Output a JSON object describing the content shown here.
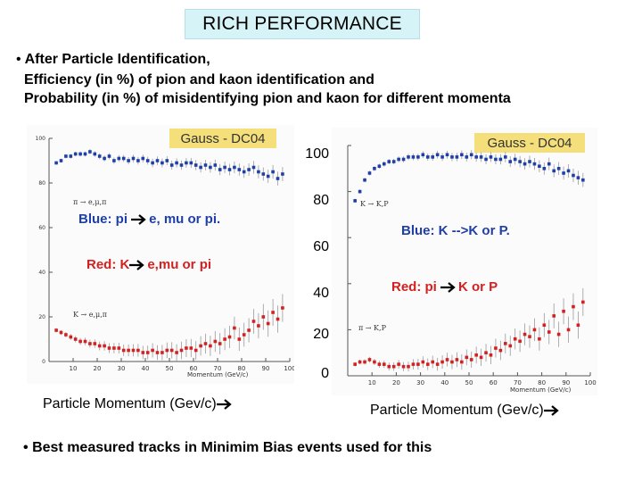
{
  "title": "RICH PERFORMANCE",
  "intro": {
    "bullet": "•",
    "line1": "After Particle Identification,",
    "line2": "Efficiency (in %) of pion and kaon identification and",
    "line3": "Probability (in %) of misidentifying pion and kaon for different momenta"
  },
  "left_panel": {
    "badge": "Gauss - DC04",
    "pi_label": "π → e,μ,π",
    "k_label": "K → e,μ,π",
    "axis_label": "Momentum (GeV/c)",
    "blue_note": "Blue: pi",
    "blue_note_tail": "e, mu or pi.",
    "red_note": "Red: K",
    "red_note_tail": "e,mu or pi",
    "xlabel": "Particle Momentum (Gev/c)"
  },
  "right_panel": {
    "badge": "Gauss - DC04",
    "k_label": "K → K,P",
    "pi_label": "π → K,P",
    "axis_label": "Momentum (GeV/c)",
    "blue_note": "Blue: K -->K or P.",
    "red_note": "Red: pi",
    "red_note_tail": "K or P",
    "xlabel": "Particle Momentum (Gev/c)"
  },
  "shared_yticks": [
    "100",
    "80",
    "60",
    "40",
    "20",
    "0"
  ],
  "footer": "Best measured tracks in Minimim Bias events used for this",
  "colors": {
    "blue": "#1f3fa8",
    "red": "#d42020",
    "badge": "#f4df7a",
    "title_bg": "#d6f3f7"
  },
  "chart_data": [
    {
      "type": "scatter",
      "title": "Gauss - DC04",
      "xlabel": "Momentum (GeV/c)",
      "xlim": [
        0,
        100
      ],
      "ylim": [
        0,
        100
      ],
      "xticks": [
        10,
        20,
        30,
        40,
        50,
        60,
        70,
        80,
        90,
        100
      ],
      "yticks": [
        0,
        20,
        40,
        60,
        80,
        100
      ],
      "series": [
        {
          "name": "π → e,μ,π",
          "color": "blue",
          "x": [
            3,
            5,
            7,
            9,
            11,
            13,
            15,
            17,
            19,
            21,
            23,
            25,
            27,
            29,
            31,
            33,
            35,
            37,
            39,
            41,
            43,
            45,
            47,
            49,
            51,
            53,
            55,
            57,
            59,
            61,
            63,
            65,
            67,
            69,
            71,
            73,
            75,
            77,
            79,
            81,
            83,
            85,
            87,
            89,
            91,
            93,
            95,
            97
          ],
          "y": [
            89,
            90,
            92,
            92,
            93,
            93,
            93,
            94,
            93,
            92,
            91,
            92,
            90,
            91,
            91,
            90,
            91,
            90,
            91,
            90,
            89,
            90,
            89,
            90,
            88,
            89,
            88,
            89,
            89,
            88,
            87,
            88,
            87,
            88,
            86,
            87,
            86,
            87,
            86,
            85,
            86,
            87,
            85,
            84,
            83,
            85,
            82,
            84
          ]
        },
        {
          "name": "K → e,μ,π",
          "color": "red",
          "x": [
            3,
            5,
            7,
            9,
            11,
            13,
            15,
            17,
            19,
            21,
            23,
            25,
            27,
            29,
            31,
            33,
            35,
            37,
            39,
            41,
            43,
            45,
            47,
            49,
            51,
            53,
            55,
            57,
            59,
            61,
            63,
            65,
            67,
            69,
            71,
            73,
            75,
            77,
            79,
            81,
            83,
            85,
            87,
            89,
            91,
            93,
            95,
            97
          ],
          "y": [
            14,
            13,
            12,
            11,
            10,
            9,
            9,
            8,
            8,
            7,
            7,
            6,
            6,
            6,
            5,
            5,
            5,
            5,
            4,
            4,
            5,
            4,
            4,
            5,
            5,
            4,
            5,
            6,
            6,
            5,
            7,
            8,
            7,
            9,
            8,
            10,
            11,
            15,
            10,
            12,
            14,
            18,
            16,
            20,
            17,
            22,
            19,
            24
          ]
        }
      ]
    },
    {
      "type": "scatter",
      "title": "Gauss - DC04",
      "xlabel": "Momentum (GeV/c)",
      "xlim": [
        0,
        100
      ],
      "ylim": [
        0,
        100
      ],
      "xticks": [
        10,
        20,
        30,
        40,
        50,
        60,
        70,
        80,
        90,
        100
      ],
      "yticks": [
        0,
        20,
        40,
        60,
        80,
        100
      ],
      "series": [
        {
          "name": "K → K,P",
          "color": "blue",
          "x": [
            3,
            5,
            7,
            9,
            11,
            13,
            15,
            17,
            19,
            21,
            23,
            25,
            27,
            29,
            31,
            33,
            35,
            37,
            39,
            41,
            43,
            45,
            47,
            49,
            51,
            53,
            55,
            57,
            59,
            61,
            63,
            65,
            67,
            69,
            71,
            73,
            75,
            77,
            79,
            81,
            83,
            85,
            87,
            89,
            91,
            93,
            95,
            97
          ],
          "y": [
            76,
            80,
            85,
            88,
            90,
            91,
            92,
            93,
            93,
            94,
            94,
            95,
            95,
            95,
            96,
            95,
            95,
            96,
            95,
            96,
            95,
            95,
            96,
            95,
            96,
            95,
            95,
            94,
            95,
            94,
            94,
            95,
            93,
            94,
            93,
            92,
            93,
            92,
            91,
            90,
            92,
            89,
            90,
            88,
            89,
            87,
            86,
            85
          ]
        },
        {
          "name": "π → K,P",
          "color": "red",
          "x": [
            3,
            5,
            7,
            9,
            11,
            13,
            15,
            17,
            19,
            21,
            23,
            25,
            27,
            29,
            31,
            33,
            35,
            37,
            39,
            41,
            43,
            45,
            47,
            49,
            51,
            53,
            55,
            57,
            59,
            61,
            63,
            65,
            67,
            69,
            71,
            73,
            75,
            77,
            79,
            81,
            83,
            85,
            87,
            89,
            91,
            93,
            95,
            97
          ],
          "y": [
            5,
            6,
            6,
            7,
            6,
            5,
            5,
            4,
            4,
            5,
            4,
            4,
            5,
            5,
            6,
            5,
            6,
            5,
            6,
            7,
            6,
            7,
            6,
            8,
            7,
            9,
            8,
            10,
            9,
            12,
            11,
            14,
            13,
            16,
            15,
            18,
            17,
            20,
            16,
            22,
            19,
            26,
            18,
            28,
            20,
            30,
            22,
            32
          ]
        }
      ]
    }
  ]
}
